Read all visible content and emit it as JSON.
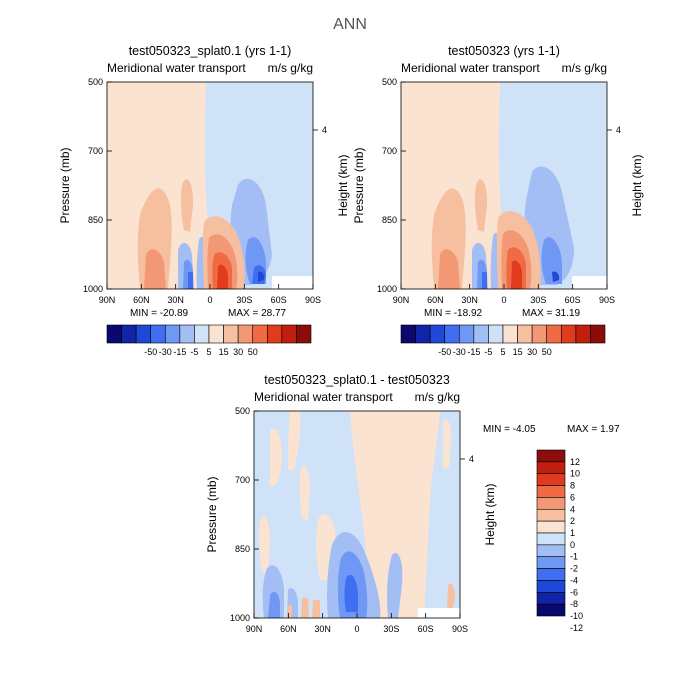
{
  "figure": {
    "title": "ANN"
  },
  "chart_data": [
    {
      "type": "heatmap",
      "title": "test050323_splat0.1 (yrs 1-1)",
      "subtitle": "Meridional water transport",
      "units": "m/s g/kg",
      "xlabel": "",
      "ylabel": "Pressure (mb)",
      "ylabel_right": "Height (km)",
      "x_ticks": [
        "90N",
        "60N",
        "30N",
        "0",
        "30S",
        "60S",
        "90S"
      ],
      "y_ticks": [
        "500",
        "700",
        "850",
        "1000"
      ],
      "right_ticks": [
        "4"
      ],
      "min_label": "MIN = -20.89",
      "max_label": "MAX = 28.77",
      "min": -20.89,
      "max": 28.77,
      "colorbar_labels": [
        "-50",
        "-30",
        "-15",
        "-5",
        "5",
        "15",
        "30",
        "50"
      ]
    },
    {
      "type": "heatmap",
      "title": "test050323 (yrs 1-1)",
      "subtitle": "Meridional water transport",
      "units": "m/s g/kg",
      "xlabel": "",
      "ylabel": "Pressure (mb)",
      "ylabel_right": "Height (km)",
      "x_ticks": [
        "90N",
        "60N",
        "30N",
        "0",
        "30S",
        "60S",
        "90S"
      ],
      "y_ticks": [
        "500",
        "700",
        "850",
        "1000"
      ],
      "right_ticks": [
        "4"
      ],
      "min_label": "MIN = -18.92",
      "max_label": "MAX = 31.19",
      "min": -18.92,
      "max": 31.19,
      "colorbar_labels": [
        "-50",
        "-30",
        "-15",
        "-5",
        "5",
        "15",
        "30",
        "50"
      ]
    },
    {
      "type": "heatmap",
      "title": "test050323_splat0.1 - test050323",
      "subtitle": "Meridional water transport",
      "units": "m/s g/kg",
      "xlabel": "",
      "ylabel": "Pressure (mb)",
      "ylabel_right": "Height (km)",
      "x_ticks": [
        "90N",
        "60N",
        "30N",
        "0",
        "30S",
        "60S",
        "90S"
      ],
      "y_ticks": [
        "500",
        "700",
        "850",
        "1000"
      ],
      "right_ticks": [
        "4"
      ],
      "min_label": "MIN = -4.05",
      "max_label": "MAX = 1.97",
      "min": -4.05,
      "max": 1.97,
      "colorbar_labels": [
        "12",
        "10",
        "8",
        "6",
        "4",
        "2",
        "1",
        "0",
        "-1",
        "-2",
        "-4",
        "-6",
        "-8",
        "-10",
        "-12"
      ]
    }
  ],
  "colors": {
    "top_scale": [
      "#08086e",
      "#1024a8",
      "#1f48d6",
      "#3f6ff0",
      "#6f98f5",
      "#a3bdf5",
      "#d0e2f8",
      "#fbe3d2",
      "#f6c0a0",
      "#f39875",
      "#f06a43",
      "#e03b1d",
      "#c01e0e",
      "#8c0b0b"
    ],
    "diff_scale": [
      "#8c0b0b",
      "#c01e0e",
      "#e03b1d",
      "#f06a43",
      "#f39875",
      "#f6c0a0",
      "#fbe3d2",
      "#d0e2f8",
      "#a3bdf5",
      "#6f98f5",
      "#3f6ff0",
      "#1f48d6",
      "#1024a8",
      "#08086e"
    ]
  }
}
